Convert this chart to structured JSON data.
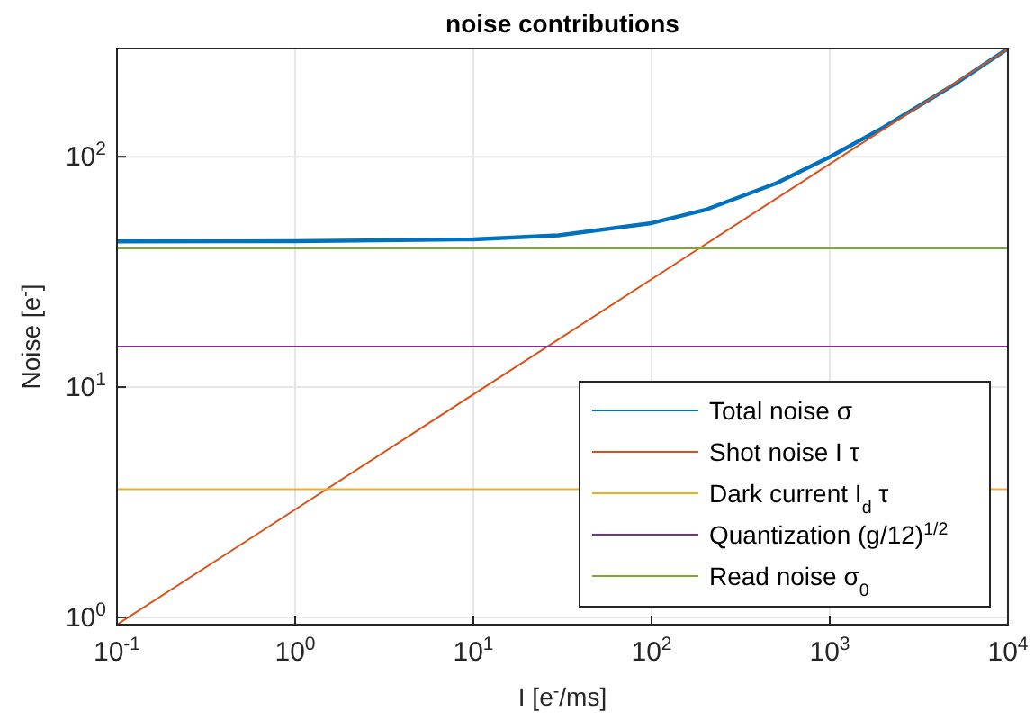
{
  "chart_data": {
    "type": "line",
    "title": "noise contributions",
    "xlabel": "I [e$^{-}$/ms]",
    "ylabel": "Noise [e$^{-}$]",
    "log": "xy",
    "grid": true,
    "legend": "bottom right",
    "line_style": "solid",
    "marker": "none",
    "xlim": [
      0.1,
      10000
    ],
    "ylim": [
      0.93,
      295
    ],
    "xticks": [
      {
        "value": 0.1,
        "label": "10$^{-1}$"
      },
      {
        "value": 1,
        "label": "10$^{0}$"
      },
      {
        "value": 10,
        "label": "10$^{1}$"
      },
      {
        "value": 100,
        "label": "10$^{2}$"
      },
      {
        "value": 1000,
        "label": "10$^{3}$"
      },
      {
        "value": 10000,
        "label": "10$^{4}$"
      }
    ],
    "yticks": [
      {
        "value": 1,
        "label": "10$^{0}$"
      },
      {
        "value": 10,
        "label": "10$^{1}$"
      },
      {
        "value": 100,
        "label": "10$^{2}$"
      }
    ],
    "series": [
      {
        "name": "Total noise σ",
        "color": "#0072bd",
        "x": [
          0.1,
          1,
          10,
          30,
          100,
          200,
          500,
          1000,
          2000,
          5000,
          10000
        ],
        "values": [
          42.9,
          43,
          43.8,
          45.6,
          51.5,
          58.8,
          76.7,
          99.7,
          134,
          206,
          295
        ]
      },
      {
        "name": "Shot noise I τ",
        "color": "#d95319",
        "x": [
          0.1,
          10000
        ],
        "values": [
          0.93,
          294
        ]
      },
      {
        "name": "Dark current I$_{d}$ τ",
        "color": "#edb120",
        "x": [
          0.1,
          10000
        ],
        "values": [
          3.6,
          3.6
        ]
      },
      {
        "name": "Quantization (g/12)$^{1/2}$",
        "color": "#7e2f8e",
        "x": [
          0.1,
          10000
        ],
        "values": [
          15,
          15
        ]
      },
      {
        "name": "Read noise σ$_{0}$",
        "color": "#77ac30",
        "x": [
          0.1,
          10000
        ],
        "values": [
          40,
          40
        ]
      }
    ]
  }
}
